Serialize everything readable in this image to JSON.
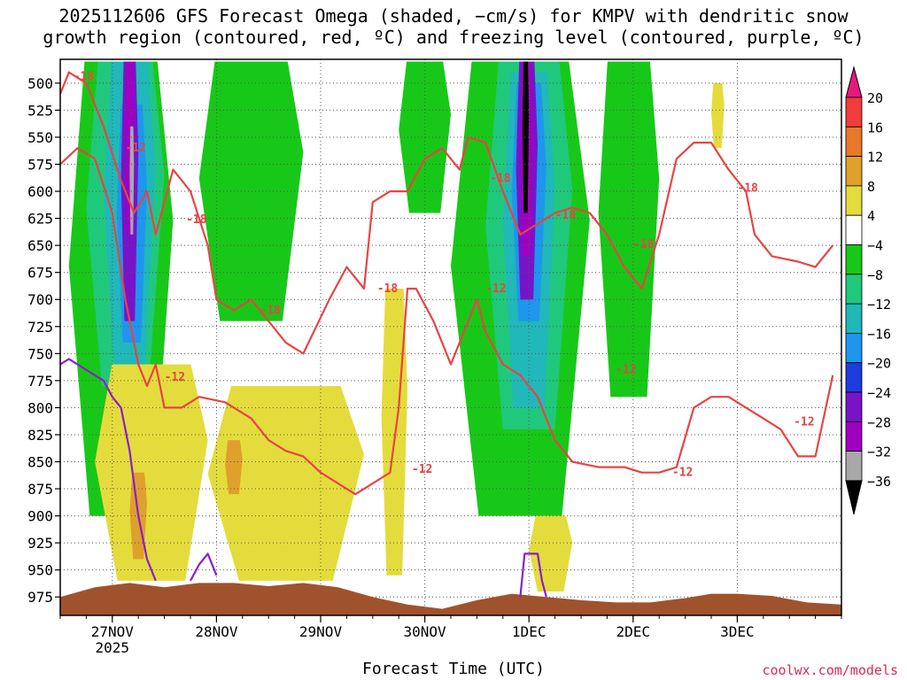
{
  "chart_data": {
    "type": "heatmap",
    "title_line1": "2025112606 GFS Forecast Omega (shaded, −cm/s) for KMPV with dendritic snow",
    "title_line2": "growth region (contoured, red, ºC) and freezing level (contoured, purple, ºC)",
    "xlabel": "Forecast Time (UTC)",
    "x_ticks": [
      {
        "label": "27NOV",
        "sub": "2025",
        "t": 18
      },
      {
        "label": "28NOV",
        "sub": "",
        "t": 42
      },
      {
        "label": "29NOV",
        "sub": "",
        "t": 66
      },
      {
        "label": "30NOV",
        "sub": "",
        "t": 90
      },
      {
        "label": "1DEC",
        "sub": "",
        "t": 114
      },
      {
        "label": "2DEC",
        "sub": "",
        "t": 138
      },
      {
        "label": "3DEC",
        "sub": "",
        "t": 162
      }
    ],
    "x_range_hours": [
      6,
      186
    ],
    "y_levels": [
      500,
      525,
      550,
      575,
      600,
      625,
      650,
      675,
      700,
      725,
      750,
      775,
      800,
      825,
      850,
      875,
      900,
      925,
      950,
      975
    ],
    "y_range": [
      478,
      992
    ],
    "colorbar_labels": [
      "20",
      "16",
      "12",
      "8",
      "4",
      "−4",
      "−8",
      "−12",
      "−16",
      "−20",
      "−24",
      "−28",
      "−32",
      "−36"
    ],
    "colorbar_colors": {
      "top_arrow": "#e8197c",
      "bands": [
        "#f03c3c",
        "#e8782a",
        "#e0a02c",
        "#e4dc3c",
        "#ffffff",
        "#18c818",
        "#20c87c",
        "#20b8b8",
        "#1e96ee",
        "#1e3cdc",
        "#7814c8",
        "#a000c0",
        "#a8a8a8"
      ],
      "bottom_arrow": "#000000"
    },
    "omega_regions": [
      {
        "band": "-4",
        "t0": 8,
        "t1": 32,
        "p0": 480,
        "p1": 900
      },
      {
        "band": "-4",
        "t0": 38,
        "t1": 62,
        "p0": 480,
        "p1": 720
      },
      {
        "band": "-4",
        "t0": 84,
        "t1": 96,
        "p0": 480,
        "p1": 620
      },
      {
        "band": "-4",
        "t0": 96,
        "t1": 128,
        "p0": 480,
        "p1": 900
      },
      {
        "band": "-4",
        "t0": 130,
        "t1": 144,
        "p0": 480,
        "p1": 790
      },
      {
        "band": "-8",
        "t0": 12,
        "t1": 30,
        "p0": 480,
        "p1": 780
      },
      {
        "band": "-8",
        "t0": 104,
        "t1": 124,
        "p0": 480,
        "p1": 820
      },
      {
        "band": "-12",
        "t0": 16,
        "t1": 28,
        "p0": 480,
        "p1": 760
      },
      {
        "band": "-12",
        "t0": 108,
        "t1": 120,
        "p0": 490,
        "p1": 800
      },
      {
        "band": "-16",
        "t0": 19,
        "t1": 26,
        "p0": 520,
        "p1": 740
      },
      {
        "band": "-16",
        "t0": 110,
        "t1": 118,
        "p0": 500,
        "p1": 720
      },
      {
        "band": "-24",
        "t0": 20,
        "t1": 24,
        "p0": 480,
        "p1": 720
      },
      {
        "band": "-24",
        "t0": 111,
        "t1": 116,
        "p0": 480,
        "p1": 700
      },
      {
        "band": "-28",
        "t0": 21,
        "t1": 23,
        "p0": 480,
        "p1": 640
      },
      {
        "band": "-28",
        "t0": 112,
        "t1": 115,
        "p0": 480,
        "p1": 660
      },
      {
        "band": "-32",
        "t0": 22,
        "t1": 23,
        "p0": 540,
        "p1": 640
      },
      {
        "band": "-36",
        "t0": 112.5,
        "t1": 114,
        "p0": 480,
        "p1": 620
      },
      {
        "band": "4",
        "t0": 14,
        "t1": 40,
        "p0": 760,
        "p1": 960
      },
      {
        "band": "4",
        "t0": 40,
        "t1": 76,
        "p0": 780,
        "p1": 960
      },
      {
        "band": "4",
        "t0": 80,
        "t1": 86,
        "p0": 690,
        "p1": 955
      },
      {
        "band": "4",
        "t0": 114,
        "t1": 124,
        "p0": 900,
        "p1": 970
      },
      {
        "band": "4",
        "t0": 156,
        "t1": 159,
        "p0": 500,
        "p1": 560
      },
      {
        "band": "8",
        "t0": 22,
        "t1": 26,
        "p0": 860,
        "p1": 940
      },
      {
        "band": "8",
        "t0": 44,
        "t1": 48,
        "p0": 830,
        "p1": 880
      }
    ],
    "dendritic_contours_C": [
      -12,
      -18
    ],
    "contour_labels": [
      {
        "text": "-18",
        "t": 9,
        "p": 494
      },
      {
        "text": "-12",
        "t": 21,
        "p": 560
      },
      {
        "text": "-18",
        "t": 35,
        "p": 626
      },
      {
        "text": "-18",
        "t": 52,
        "p": 710
      },
      {
        "text": "-12",
        "t": 30,
        "p": 772
      },
      {
        "text": "-18",
        "t": 79,
        "p": 690
      },
      {
        "text": "-12",
        "t": 87,
        "p": 857
      },
      {
        "text": "-18",
        "t": 105,
        "p": 588
      },
      {
        "text": "-12",
        "t": 104,
        "p": 690
      },
      {
        "text": "-18",
        "t": 120,
        "p": 622
      },
      {
        "text": "-18",
        "t": 138,
        "p": 649
      },
      {
        "text": "-12",
        "t": 134,
        "p": 765
      },
      {
        "text": "-12",
        "t": 147,
        "p": 860
      },
      {
        "text": "-18",
        "t": 162,
        "p": 597
      },
      {
        "text": "-12",
        "t": 175,
        "p": 813
      }
    ],
    "dendritic_line_points": [
      {
        "t": 6,
        "p": 510
      },
      {
        "t": 8,
        "p": 490
      },
      {
        "t": 12,
        "p": 500
      },
      {
        "t": 16,
        "p": 540
      },
      {
        "t": 20,
        "p": 590
      },
      {
        "t": 23,
        "p": 620
      },
      {
        "t": 26,
        "p": 600
      },
      {
        "t": 28,
        "p": 640
      },
      {
        "t": 32,
        "p": 580
      },
      {
        "t": 36,
        "p": 600
      },
      {
        "t": 40,
        "p": 650
      },
      {
        "t": 42,
        "p": 700
      },
      {
        "t": 46,
        "p": 710
      },
      {
        "t": 50,
        "p": 700
      },
      {
        "t": 54,
        "p": 720
      },
      {
        "t": 58,
        "p": 740
      },
      {
        "t": 62,
        "p": 750
      },
      {
        "t": 68,
        "p": 700
      },
      {
        "t": 72,
        "p": 670
      },
      {
        "t": 76,
        "p": 690
      },
      {
        "t": 78,
        "p": 610
      },
      {
        "t": 82,
        "p": 600
      },
      {
        "t": 86,
        "p": 600
      },
      {
        "t": 90,
        "p": 570
      },
      {
        "t": 94,
        "p": 560
      },
      {
        "t": 98,
        "p": 580
      },
      {
        "t": 100,
        "p": 550
      },
      {
        "t": 104,
        "p": 555
      },
      {
        "t": 108,
        "p": 600
      },
      {
        "t": 112,
        "p": 640
      },
      {
        "t": 116,
        "p": 630
      },
      {
        "t": 120,
        "p": 620
      },
      {
        "t": 124,
        "p": 615
      },
      {
        "t": 128,
        "p": 620
      },
      {
        "t": 132,
        "p": 640
      },
      {
        "t": 136,
        "p": 670
      },
      {
        "t": 140,
        "p": 690
      },
      {
        "t": 144,
        "p": 640
      },
      {
        "t": 148,
        "p": 570
      },
      {
        "t": 152,
        "p": 555
      },
      {
        "t": 156,
        "p": 555
      },
      {
        "t": 160,
        "p": 580
      },
      {
        "t": 164,
        "p": 600
      },
      {
        "t": 166,
        "p": 640
      },
      {
        "t": 170,
        "p": 660
      },
      {
        "t": 176,
        "p": 665
      },
      {
        "t": 180,
        "p": 670
      },
      {
        "t": 184,
        "p": 650
      }
    ],
    "dendritic_line2_points": [
      {
        "t": 6,
        "p": 575
      },
      {
        "t": 10,
        "p": 560
      },
      {
        "t": 14,
        "p": 570
      },
      {
        "t": 18,
        "p": 620
      },
      {
        "t": 21,
        "p": 700
      },
      {
        "t": 24,
        "p": 760
      },
      {
        "t": 26,
        "p": 780
      },
      {
        "t": 28,
        "p": 760
      },
      {
        "t": 30,
        "p": 800
      },
      {
        "t": 34,
        "p": 800
      },
      {
        "t": 38,
        "p": 790
      },
      {
        "t": 44,
        "p": 795
      },
      {
        "t": 50,
        "p": 810
      },
      {
        "t": 54,
        "p": 830
      },
      {
        "t": 58,
        "p": 840
      },
      {
        "t": 62,
        "p": 845
      },
      {
        "t": 66,
        "p": 860
      },
      {
        "t": 70,
        "p": 870
      },
      {
        "t": 74,
        "p": 880
      },
      {
        "t": 78,
        "p": 870
      },
      {
        "t": 82,
        "p": 860
      },
      {
        "t": 84,
        "p": 800
      },
      {
        "t": 86,
        "p": 690
      },
      {
        "t": 88,
        "p": 690
      },
      {
        "t": 92,
        "p": 720
      },
      {
        "t": 96,
        "p": 760
      },
      {
        "t": 100,
        "p": 720
      },
      {
        "t": 102,
        "p": 700
      },
      {
        "t": 104,
        "p": 730
      },
      {
        "t": 108,
        "p": 760
      },
      {
        "t": 112,
        "p": 770
      },
      {
        "t": 116,
        "p": 790
      },
      {
        "t": 120,
        "p": 830
      },
      {
        "t": 124,
        "p": 850
      },
      {
        "t": 130,
        "p": 855
      },
      {
        "t": 136,
        "p": 855
      },
      {
        "t": 140,
        "p": 860
      },
      {
        "t": 144,
        "p": 860
      },
      {
        "t": 148,
        "p": 855
      },
      {
        "t": 152,
        "p": 800
      },
      {
        "t": 156,
        "p": 790
      },
      {
        "t": 160,
        "p": 790
      },
      {
        "t": 164,
        "p": 800
      },
      {
        "t": 168,
        "p": 810
      },
      {
        "t": 172,
        "p": 820
      },
      {
        "t": 176,
        "p": 845
      },
      {
        "t": 180,
        "p": 845
      },
      {
        "t": 184,
        "p": 770
      }
    ],
    "freezing_level_points": [
      {
        "t": 6,
        "p": 760
      },
      {
        "t": 8,
        "p": 755
      },
      {
        "t": 12,
        "p": 765
      },
      {
        "t": 16,
        "p": 775
      },
      {
        "t": 18,
        "p": 790
      },
      {
        "t": 20,
        "p": 800
      },
      {
        "t": 22,
        "p": 840
      },
      {
        "t": 24,
        "p": 900
      },
      {
        "t": 26,
        "p": 940
      },
      {
        "t": 28,
        "p": 960
      }
    ],
    "freezing_level2_points": [
      {
        "t": 36,
        "p": 960
      },
      {
        "t": 38,
        "p": 945
      },
      {
        "t": 40,
        "p": 935
      },
      {
        "t": 42,
        "p": 955
      }
    ],
    "freezing_level3_points": [
      {
        "t": 112,
        "p": 975
      },
      {
        "t": 113,
        "p": 935
      },
      {
        "t": 116,
        "p": 935
      },
      {
        "t": 117,
        "p": 960
      },
      {
        "t": 118,
        "p": 975
      }
    ],
    "terrain_points": [
      {
        "t": 6,
        "p": 975
      },
      {
        "t": 14,
        "p": 966
      },
      {
        "t": 22,
        "p": 962
      },
      {
        "t": 30,
        "p": 966
      },
      {
        "t": 38,
        "p": 962
      },
      {
        "t": 46,
        "p": 962
      },
      {
        "t": 54,
        "p": 965
      },
      {
        "t": 62,
        "p": 962
      },
      {
        "t": 70,
        "p": 966
      },
      {
        "t": 78,
        "p": 975
      },
      {
        "t": 86,
        "p": 982
      },
      {
        "t": 94,
        "p": 986
      },
      {
        "t": 102,
        "p": 978
      },
      {
        "t": 110,
        "p": 972
      },
      {
        "t": 118,
        "p": 975
      },
      {
        "t": 126,
        "p": 978
      },
      {
        "t": 134,
        "p": 980
      },
      {
        "t": 142,
        "p": 980
      },
      {
        "t": 150,
        "p": 976
      },
      {
        "t": 156,
        "p": 972
      },
      {
        "t": 162,
        "p": 972
      },
      {
        "t": 170,
        "p": 974
      },
      {
        "t": 178,
        "p": 980
      },
      {
        "t": 186,
        "p": 982
      }
    ],
    "colors": {
      "dendritic": "#e84444",
      "freezing": "#8c1ec8",
      "terrain": "#a0522d",
      "grid": "#555555"
    }
  },
  "credit": "coolwx.com/models"
}
